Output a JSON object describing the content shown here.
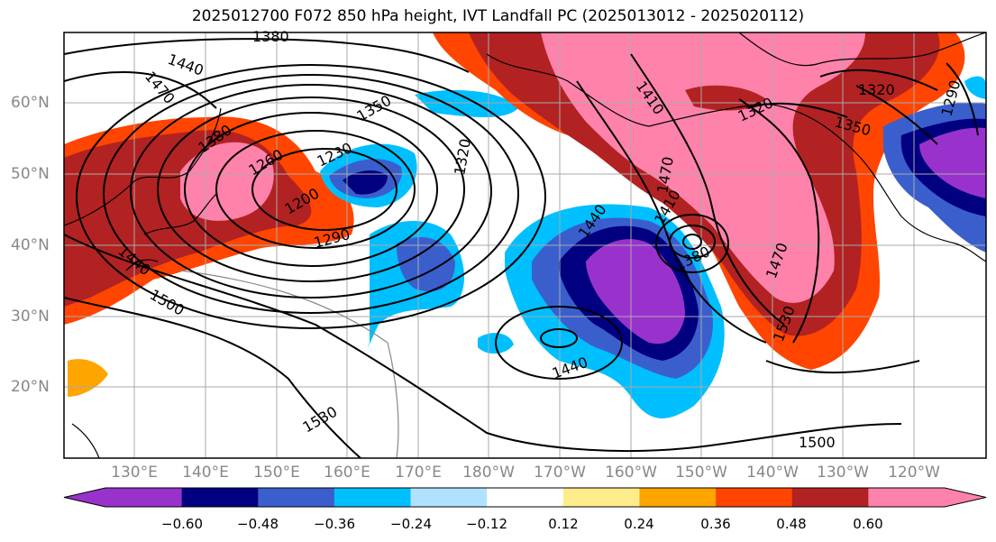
{
  "title": "2025012700 F072 850 hPa height, IVT Landfall PC (2025013012 - 2025020112)",
  "lat_labels": [
    "60°N",
    "50°N",
    "40°N",
    "30°N",
    "20°N"
  ],
  "lon_labels": [
    "130°E",
    "140°E",
    "150°E",
    "160°E",
    "170°E",
    "180°W",
    "170°W",
    "160°W",
    "150°W",
    "140°W",
    "130°W",
    "120°W"
  ],
  "contour_labels": [
    "1380",
    "1440",
    "1470",
    "1350",
    "1380",
    "1260",
    "1230",
    "1200",
    "1320",
    "1290",
    "1440",
    "1500",
    "1530",
    "1410",
    "1470",
    "1410",
    "1380",
    "1440",
    "1320",
    "1320",
    "1350",
    "1290",
    "1470",
    "1530",
    "1500",
    "1440"
  ],
  "colorbar": {
    "ticks": [
      "−0.60",
      "−0.48",
      "−0.36",
      "−0.24",
      "−0.12",
      "0.12",
      "0.24",
      "0.36",
      "0.48",
      "0.60"
    ],
    "colors": [
      "#9932CC",
      "#000080",
      "#3A5FCD",
      "#00BFFF",
      "#B0E2FF",
      "#FFFFFF",
      "#FFEC8B",
      "#FFA500",
      "#FF4500",
      "#B22222",
      "#FF82AB"
    ]
  }
}
